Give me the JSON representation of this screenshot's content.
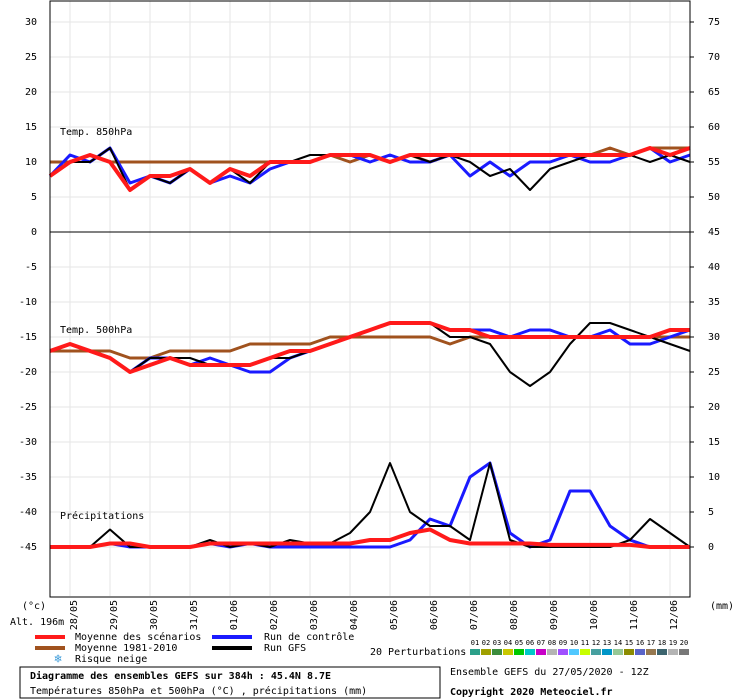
{
  "chart_data": {
    "type": "line",
    "title": "Diagramme des ensembles GEFS sur 384h : 45.4N 8.7E",
    "subtitle": "Températures 850hPa et 500hPa (°C) , précipitations (mm)",
    "run_label": "Ensemble GEFS du 27/05/2020 - 12Z",
    "copyright": "Copyright 2020 Meteociel.fr",
    "y_unit": "(°c)",
    "y2_unit": "(mm)",
    "altitude": "Alt. 196m",
    "panel_labels": [
      "Temp. 850hPa",
      "Temp. 500hPa",
      "Précipitations"
    ],
    "snow_risk": "Risque neige",
    "perturbations_label": "20 Perturbations",
    "perturbations": [
      {
        "label": "01",
        "color": "#2ca089"
      },
      {
        "label": "02",
        "color": "#a0a000"
      },
      {
        "label": "03",
        "color": "#3c8c3c"
      },
      {
        "label": "04",
        "color": "#c8c800"
      },
      {
        "label": "05",
        "color": "#00c800"
      },
      {
        "label": "06",
        "color": "#00c8c8"
      },
      {
        "label": "07",
        "color": "#c800c8"
      },
      {
        "label": "08",
        "color": "#b4b4b4"
      },
      {
        "label": "09",
        "color": "#a050ff"
      },
      {
        "label": "10",
        "color": "#50c8ff"
      },
      {
        "label": "11",
        "color": "#c8ff00"
      },
      {
        "label": "12",
        "color": "#46a0a0"
      },
      {
        "label": "13",
        "color": "#0096c8"
      },
      {
        "label": "14",
        "color": "#96c896"
      },
      {
        "label": "15",
        "color": "#8c8c00"
      },
      {
        "label": "16",
        "color": "#5a64c8"
      },
      {
        "label": "17",
        "color": "#967850"
      },
      {
        "label": "18",
        "color": "#3c646e"
      },
      {
        "label": "19",
        "color": "#b4b4b4"
      },
      {
        "label": "20",
        "color": "#787878"
      }
    ],
    "categories": [
      null,
      "28/05",
      null,
      "29/05",
      null,
      "30/05",
      null,
      "31/05",
      null,
      "01/06",
      null,
      "02/06",
      null,
      "03/06",
      null,
      "04/06",
      null,
      "05/06",
      null,
      "06/06",
      null,
      "07/06",
      null,
      "08/06",
      null,
      "09/06",
      null,
      "10/06",
      null,
      "11/06",
      null,
      "12/06",
      null
    ],
    "ylim": [
      -52,
      33
    ],
    "yticks": [
      30,
      25,
      20,
      15,
      10,
      5,
      0,
      -5,
      -10,
      -15,
      -20,
      -25,
      -30,
      -35,
      -40,
      -45
    ],
    "y2lim": [
      -7,
      78
    ],
    "y2ticks": [
      75,
      70,
      65,
      60,
      55,
      50,
      45,
      40,
      35,
      30,
      25,
      20,
      15,
      10,
      5,
      0
    ],
    "grid": true,
    "series": [
      {
        "name": "Moyenne 1981-2010",
        "color": "#a0521e",
        "values": [
          10,
          10,
          11,
          10,
          10,
          10,
          10,
          10,
          10,
          10,
          10,
          10,
          10,
          10,
          11,
          10,
          11,
          10,
          11,
          10,
          11,
          11,
          11,
          11,
          11,
          11,
          11,
          11,
          12,
          11,
          12,
          12,
          12
        ]
      },
      {
        "name": "Run de contrôle",
        "color": "#1a1aff",
        "values": [
          8,
          11,
          10,
          12,
          7,
          8,
          7,
          9,
          7,
          8,
          7,
          9,
          10,
          10,
          11,
          11,
          10,
          11,
          10,
          10,
          11,
          8,
          10,
          8,
          10,
          10,
          11,
          10,
          10,
          11,
          12,
          10,
          11
        ]
      },
      {
        "name": "Run GFS",
        "color": "#000000",
        "values": [
          8,
          10,
          10,
          12,
          6,
          8,
          7,
          9,
          7,
          9,
          7,
          10,
          10,
          11,
          11,
          11,
          11,
          10,
          11,
          10,
          11,
          10,
          8,
          9,
          6,
          9,
          10,
          11,
          11,
          11,
          10,
          11,
          10
        ]
      },
      {
        "name": "Moyenne des scénarios",
        "color": "#ff1a1a",
        "values": [
          8,
          10,
          11,
          10,
          6,
          8,
          8,
          9,
          7,
          9,
          8,
          10,
          10,
          10,
          11,
          11,
          11,
          10,
          11,
          11,
          11,
          11,
          11,
          11,
          11,
          11,
          11,
          11,
          11,
          11,
          12,
          11,
          12
        ]
      },
      {
        "name": "Moyenne 1981-2010",
        "color": "#a0521e",
        "values": [
          -17,
          -17,
          -17,
          -17,
          -18,
          -18,
          -17,
          -17,
          -17,
          -17,
          -16,
          -16,
          -16,
          -16,
          -15,
          -15,
          -15,
          -15,
          -15,
          -15,
          -16,
          -15,
          -15,
          -15,
          -15,
          -15,
          -15,
          -15,
          -15,
          -15,
          -15,
          -15,
          -15
        ]
      },
      {
        "name": "Run de contrôle",
        "color": "#1a1aff",
        "values": [
          -17,
          -16,
          -17,
          -18,
          -20,
          -18,
          -18,
          -19,
          -18,
          -19,
          -20,
          -20,
          -18,
          -17,
          -16,
          -15,
          -14,
          -13,
          -13,
          -13,
          -14,
          -14,
          -14,
          -15,
          -14,
          -14,
          -15,
          -15,
          -14,
          -16,
          -16,
          -15,
          -14
        ]
      },
      {
        "name": "Run GFS",
        "color": "#000000",
        "values": [
          -17,
          -16,
          -17,
          -18,
          -20,
          -18,
          -18,
          -18,
          -19,
          -19,
          -19,
          -18,
          -18,
          -17,
          -16,
          -15,
          -14,
          -13,
          -13,
          -13,
          -15,
          -15,
          -16,
          -20,
          -22,
          -20,
          -16,
          -13,
          -13,
          -14,
          -15,
          -16,
          -17
        ]
      },
      {
        "name": "Moyenne des scénarios",
        "color": "#ff1a1a",
        "values": [
          -17,
          -16,
          -17,
          -18,
          -20,
          -19,
          -18,
          -19,
          -19,
          -19,
          -19,
          -18,
          -17,
          -17,
          -16,
          -15,
          -14,
          -13,
          -13,
          -13,
          -14,
          -14,
          -15,
          -15,
          -15,
          -15,
          -15,
          -15,
          -15,
          -15,
          -15,
          -14,
          -14
        ]
      },
      {
        "name": "Run de contrôle",
        "color": "#1a1aff",
        "axis": "y2",
        "values": [
          0,
          0,
          0,
          0.5,
          0,
          0,
          0,
          0,
          0.5,
          0,
          0.5,
          0,
          0,
          0,
          0,
          0,
          0,
          0,
          1,
          4,
          3,
          10,
          12,
          2,
          0,
          1,
          8,
          8,
          3,
          1,
          0,
          0,
          0
        ]
      },
      {
        "name": "Run GFS",
        "color": "#000000",
        "axis": "y2",
        "values": [
          0,
          0,
          0,
          2.5,
          0,
          0,
          0,
          0,
          1,
          0,
          0.5,
          0,
          1,
          0.5,
          0.5,
          2,
          5,
          12,
          5,
          3,
          3,
          1,
          12,
          1,
          0,
          0,
          0,
          0,
          0,
          1,
          4,
          2,
          0
        ]
      },
      {
        "name": "Moyenne des scénarios",
        "color": "#ff1a1a",
        "axis": "y2",
        "values": [
          0,
          0,
          0,
          0.5,
          0.5,
          0,
          0,
          0,
          0.5,
          0.5,
          0.5,
          0.5,
          0.5,
          0.5,
          0.5,
          0.5,
          1,
          1,
          2,
          2.5,
          1,
          0.5,
          0.5,
          0.5,
          0.5,
          0.3,
          0.3,
          0.3,
          0.3,
          0.3,
          0,
          0,
          0
        ]
      }
    ]
  }
}
